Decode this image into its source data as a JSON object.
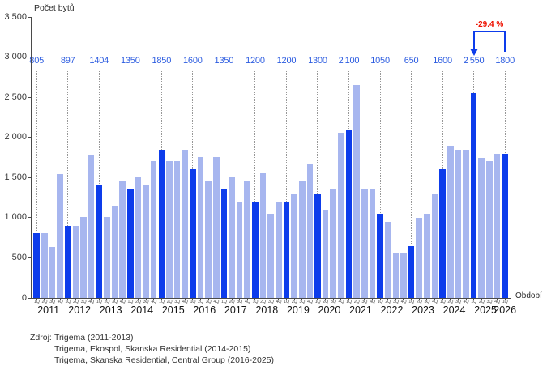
{
  "y_axis_title": "Počet bytů",
  "x_axis_title": "Období",
  "annotation_label": "-29.4 %",
  "source": {
    "prefix": "Zdroj:",
    "lines": [
      "Trigema (2011-2013)",
      "Trigema, Ekospol, Skanska Residential (2014-2015)",
      "Trigema, Skanska Residential, Central Group (2016-2025)"
    ]
  },
  "colors": {
    "bar_dark": "#0d3ceb",
    "bar_light": "#a7b6ef",
    "value_label_blue": "#2c5ce0",
    "annotation_red": "#ee1100",
    "annotation_arrow_blue": "#0d3ceb",
    "dotted_line": "#979797",
    "axis": "#4a4a4a"
  },
  "chart_data": {
    "type": "bar",
    "title": "",
    "ylabel": "Počet bytů",
    "xlabel": "Období",
    "ylim": [
      0,
      3500
    ],
    "grid": "off",
    "y_tick_values": [
      3500,
      3000,
      2500,
      2000,
      1500,
      1000,
      500,
      0
    ],
    "y_tick_labels": [
      "3 500",
      "3 000",
      "2 500",
      "2 000",
      "1 500",
      "1 000",
      "500",
      "0"
    ],
    "quarter_labels": [
      "1Q",
      "2Q",
      "3Q",
      "4Q"
    ],
    "highlight_rule": "first quarter bar of each year is dark blue; other quarters light blue; dotted vertical guide at each 1Q with its value printed in blue at top",
    "annual_first_quarter_value_labels": [
      "805",
      "897",
      "1404",
      "1350",
      "1850",
      "1600",
      "1350",
      "1200",
      "1200",
      "1300",
      "2 100",
      "1050",
      "650",
      "1600",
      "2 550",
      "1800"
    ],
    "years": [
      {
        "year": "2011",
        "values": [
          805,
          810,
          640,
          1540
        ]
      },
      {
        "year": "2012",
        "values": [
          897,
          900,
          1010,
          1790
        ]
      },
      {
        "year": "2013",
        "values": [
          1404,
          1005,
          1150,
          1465
        ]
      },
      {
        "year": "2014",
        "values": [
          1350,
          1500,
          1400,
          1700
        ]
      },
      {
        "year": "2015",
        "values": [
          1850,
          1700,
          1700,
          1850
        ]
      },
      {
        "year": "2016",
        "values": [
          1600,
          1755,
          1455,
          1760
        ]
      },
      {
        "year": "2017",
        "values": [
          1350,
          1500,
          1200,
          1455
        ]
      },
      {
        "year": "2018",
        "values": [
          1200,
          1550,
          1050,
          1200
        ]
      },
      {
        "year": "2019",
        "values": [
          1200,
          1300,
          1450,
          1660
        ]
      },
      {
        "year": "2020",
        "values": [
          1300,
          1100,
          1350,
          2060
        ]
      },
      {
        "year": "2021",
        "values": [
          2100,
          2650,
          1350,
          1350
        ]
      },
      {
        "year": "2022",
        "values": [
          1050,
          950,
          550,
          550
        ]
      },
      {
        "year": "2023",
        "values": [
          650,
          1000,
          1050,
          1300
        ]
      },
      {
        "year": "2024",
        "values": [
          1600,
          1900,
          1850,
          1850
        ]
      },
      {
        "year": "2025",
        "values": [
          2550,
          1750,
          1700,
          1800
        ]
      },
      {
        "year": "2026",
        "values": [
          1800
        ]
      }
    ],
    "annotation": {
      "text": "-29.4 %",
      "from": {
        "year": "2025",
        "quarter": "1Q",
        "value": 2550
      },
      "to": {
        "year": "2026",
        "quarter": "1Q",
        "value": 1800
      }
    },
    "legend": "none"
  }
}
